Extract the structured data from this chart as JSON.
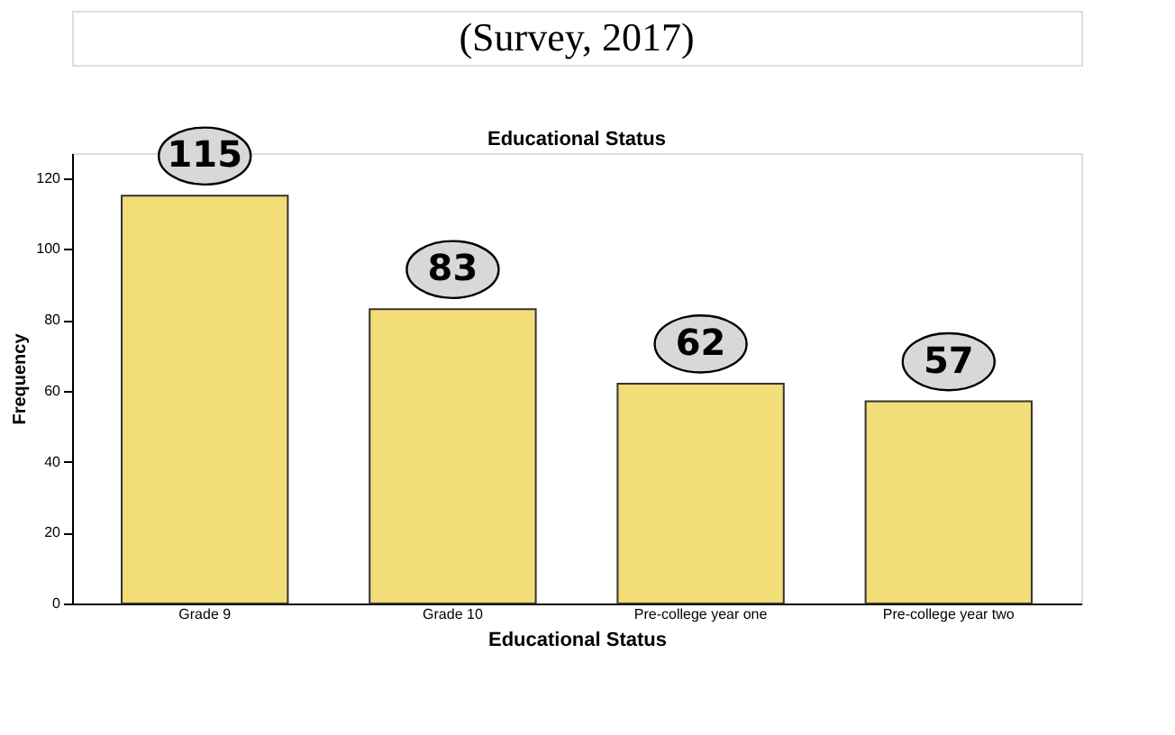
{
  "chart_data": {
    "type": "bar",
    "title": "Educational Status",
    "xlabel": "Educational Status",
    "ylabel": "Frequency",
    "annotations": [
      "(Survey, 2017)"
    ],
    "categories": [
      "Grade 9",
      "Grade 10",
      "Pre-college year one",
      "Pre-college year two"
    ],
    "values": [
      115,
      83,
      62,
      57
    ],
    "color": "#f2dd78",
    "ylim": [
      0,
      127
    ],
    "yticks": [
      0,
      20,
      40,
      60,
      80,
      100,
      120
    ],
    "grid": false,
    "data_labels": true
  }
}
